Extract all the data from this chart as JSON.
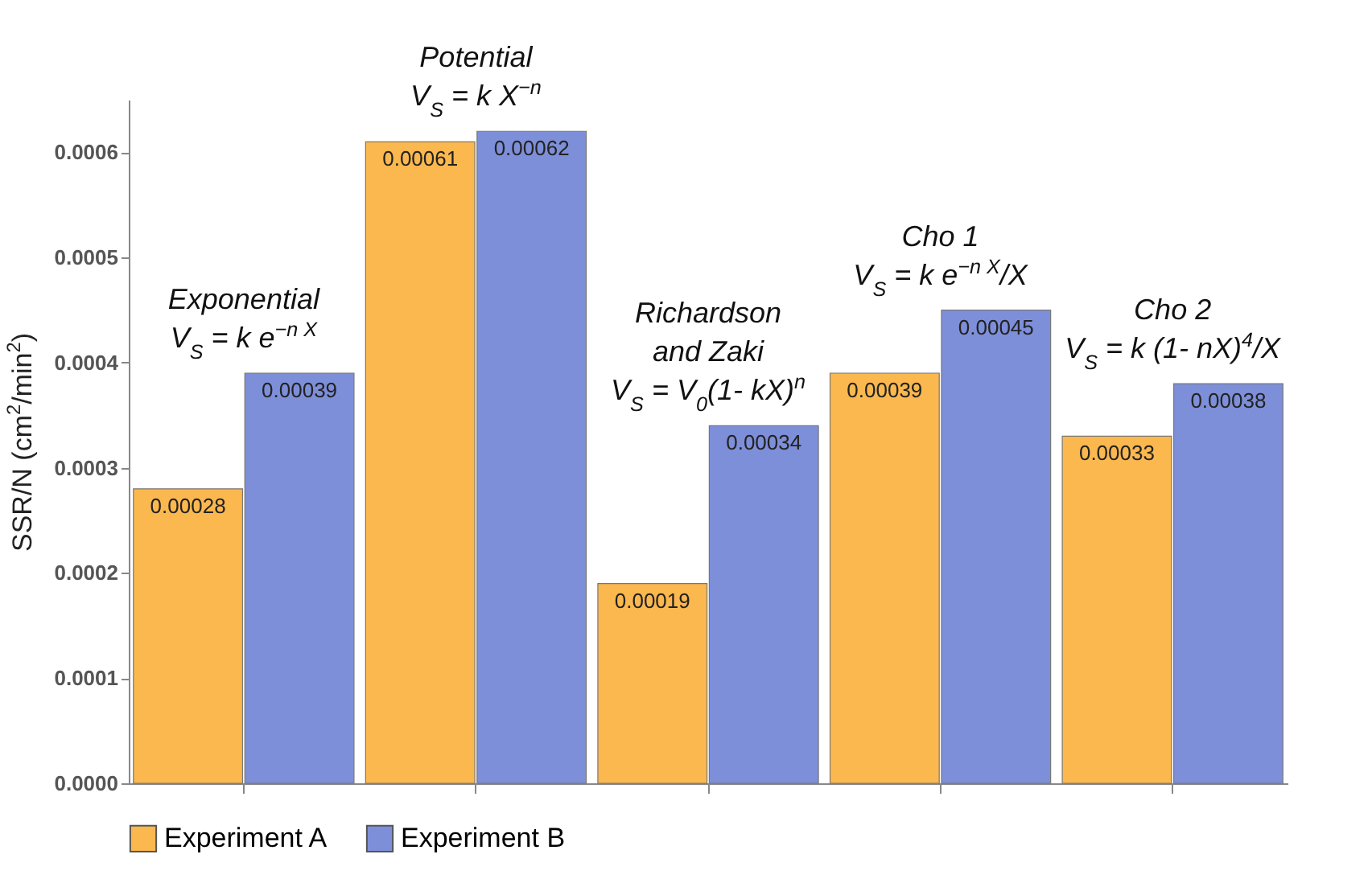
{
  "chart_data": {
    "type": "bar",
    "ylabel": "SSR/N (cm$^{2}$/min$^{2}$)",
    "categories": [
      null,
      null,
      null,
      null,
      null
    ],
    "series": [
      {
        "name": "Experiment A",
        "color": "#fbb84e",
        "values": [
          0.00028,
          0.00061,
          0.00019,
          0.00039,
          0.00033
        ]
      },
      {
        "name": "Experiment B",
        "color": "#7e8fd9",
        "values": [
          0.00039,
          0.00062,
          0.00034,
          0.00045,
          0.00038
        ]
      }
    ],
    "ylim": [
      0,
      0.00065
    ],
    "yticks": [
      {
        "value": 0,
        "label": "0.0000"
      },
      {
        "value": 0.0001,
        "label": "0.0001"
      },
      {
        "value": 0.0002,
        "label": "0.0002"
      },
      {
        "value": 0.0003,
        "label": "0.0003"
      },
      {
        "value": 0.0004,
        "label": "0.0004"
      },
      {
        "value": 0.0005,
        "label": "0.0005"
      },
      {
        "value": 0.0006,
        "label": "0.0006"
      }
    ],
    "data_labels": true,
    "legend": "bottom",
    "annotations": [
      "Exponential\nV$_{S}$ = k e$^{−n X}$",
      "Potential\nV$_{S}$ = k X$^{−n}$",
      "Richardson\nand Zaki\nV$_{S}$ = V$_{0}$(1- kX)$^{n}$",
      "Cho 1\nV$_{S}$ = k e$^{−n X}$/X",
      "Cho 2\nV$_{S}$ = k (1- nX)$^{4}$/X"
    ]
  }
}
